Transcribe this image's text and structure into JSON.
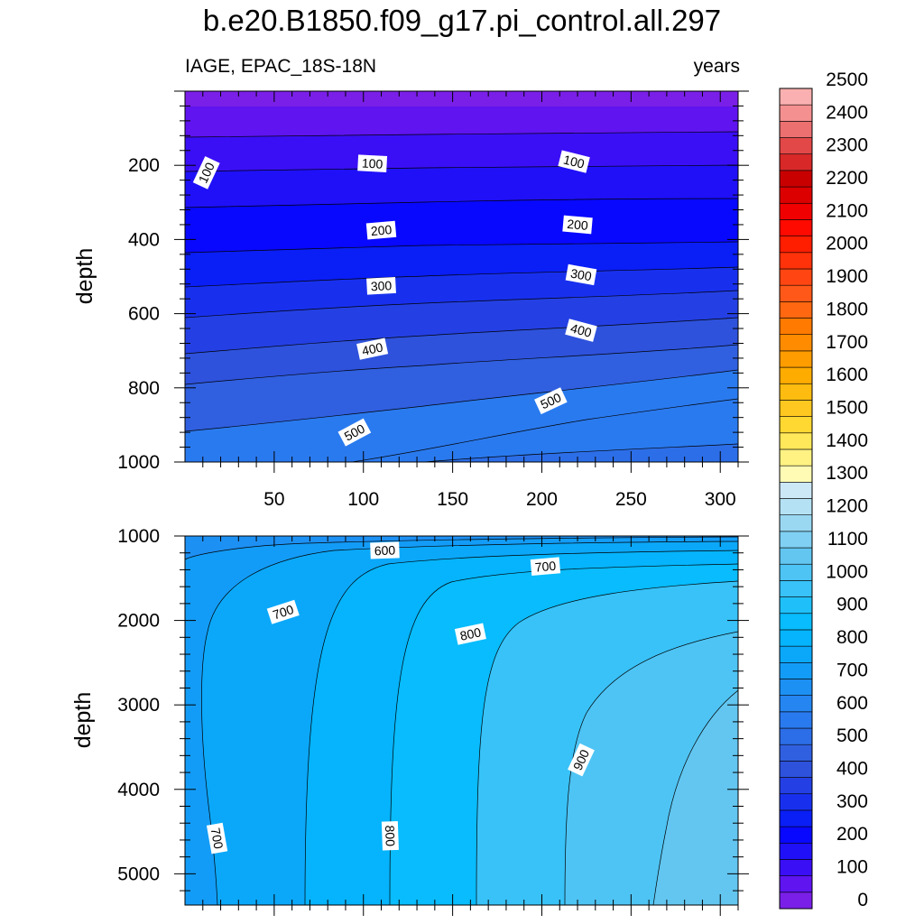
{
  "title": "b.e20.B1850.f09_g17.pi_control.all.297",
  "left_string": "IAGE, EPAC_18S-18N",
  "right_string": "years",
  "chart_data": [
    {
      "type": "heatmap",
      "panel": "upper",
      "variable": "IAGE",
      "units": "years",
      "xlabel": "",
      "ylabel": "depth",
      "xlim": [
        0,
        310
      ],
      "ylim": [
        1000,
        0
      ],
      "x_ticks": [
        50,
        100,
        150,
        200,
        250,
        300
      ],
      "y_ticks": [
        200,
        400,
        600,
        800,
        1000
      ],
      "x_tick_labels": [
        "50",
        "100",
        "150",
        "200",
        "250",
        "300"
      ],
      "y_tick_labels": [
        "200",
        "400",
        "600",
        "800",
        "1000"
      ],
      "contour_interval": 50,
      "contour_labels": [
        {
          "text": "100",
          "x": 12,
          "depth": 220
        },
        {
          "text": "100",
          "x": 105,
          "depth": 195
        },
        {
          "text": "100",
          "x": 218,
          "depth": 190
        },
        {
          "text": "200",
          "x": 110,
          "depth": 375
        },
        {
          "text": "200",
          "x": 220,
          "depth": 360
        },
        {
          "text": "300",
          "x": 110,
          "depth": 525
        },
        {
          "text": "300",
          "x": 222,
          "depth": 495
        },
        {
          "text": "400",
          "x": 105,
          "depth": 695
        },
        {
          "text": "400",
          "x": 222,
          "depth": 645
        },
        {
          "text": "500",
          "x": 95,
          "depth": 920
        },
        {
          "text": "500",
          "x": 205,
          "depth": 835
        }
      ]
    },
    {
      "type": "heatmap",
      "panel": "lower",
      "variable": "IAGE",
      "units": "years",
      "xlabel": "",
      "ylabel": "depth",
      "xlim": [
        0,
        310
      ],
      "ylim": [
        5370,
        1000
      ],
      "y_ticks": [
        1000,
        2000,
        3000,
        4000,
        5000
      ],
      "y_tick_labels": [
        "1000",
        "2000",
        "3000",
        "4000",
        "5000"
      ],
      "contour_interval": 50,
      "contour_labels": [
        {
          "text": "600",
          "x": 112,
          "depth": 1170
        },
        {
          "text": "700",
          "x": 202,
          "depth": 1360
        },
        {
          "text": "700",
          "x": 55,
          "depth": 1900
        },
        {
          "text": "800",
          "x": 160,
          "depth": 2160
        },
        {
          "text": "900",
          "x": 222,
          "depth": 3650
        },
        {
          "text": "700",
          "x": 18,
          "depth": 4580
        },
        {
          "text": "800",
          "x": 115,
          "depth": 4550
        }
      ]
    }
  ],
  "colorbar": {
    "levels": [
      0,
      50,
      100,
      150,
      200,
      250,
      300,
      350,
      400,
      450,
      500,
      550,
      600,
      650,
      700,
      750,
      800,
      850,
      900,
      950,
      1000,
      1050,
      1100,
      1150,
      1200,
      1250,
      1300,
      1350,
      1400,
      1450,
      1500,
      1550,
      1600,
      1650,
      1700,
      1750,
      1800,
      1850,
      1900,
      1950,
      2000,
      2050,
      2100,
      2150,
      2200,
      2250,
      2300,
      2350,
      2400,
      2450,
      2500
    ],
    "labels": [
      "0",
      "100",
      "200",
      "300",
      "400",
      "500",
      "600",
      "700",
      "800",
      "900",
      "1000",
      "1100",
      "1200",
      "1300",
      "1400",
      "1500",
      "1600",
      "1700",
      "1800",
      "1900",
      "2000",
      "2100",
      "2200",
      "2300",
      "2400",
      "2500"
    ],
    "colors": [
      "#7a1fe8",
      "#5f14f0",
      "#3a0ff5",
      "#1f10f8",
      "#0808ff",
      "#0a1ef6",
      "#1830ee",
      "#2440e4",
      "#2e52dc",
      "#3060e0",
      "#2c6ee8",
      "#2a7aef",
      "#2586f2",
      "#1d90f4",
      "#139cf7",
      "#0ba8fa",
      "#05b4fc",
      "#08bcfd",
      "#1fc0fa",
      "#38c2f8",
      "#4ec4f4",
      "#62c6f0",
      "#7fd0f2",
      "#9ad8f2",
      "#b4e2f4",
      "#cce8f6",
      "#fffab4",
      "#fff282",
      "#ffe85a",
      "#ffd832",
      "#ffc820",
      "#ffbc10",
      "#ffac00",
      "#ff9c00",
      "#ff8c00",
      "#ff7a00",
      "#ff6810",
      "#ff5818",
      "#ff4612",
      "#ff320a",
      "#ff1e00",
      "#ff0a00",
      "#f00000",
      "#dc0000",
      "#c80000",
      "#d82828",
      "#e24848",
      "#ec7070",
      "#f49090",
      "#fab0b0"
    ]
  }
}
